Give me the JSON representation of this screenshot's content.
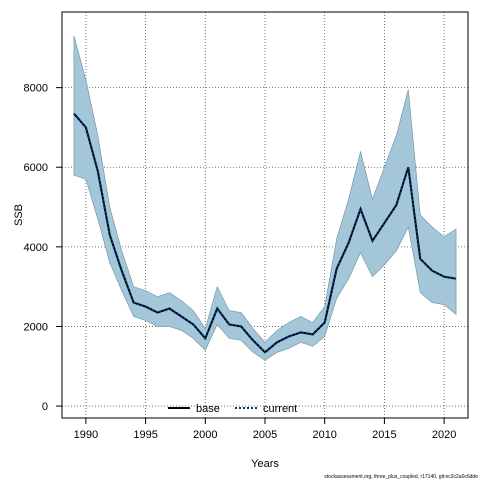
{
  "chart_data": {
    "type": "line",
    "title": "",
    "xlabel": "Years",
    "ylabel": "SSB",
    "xlim": [
      1988,
      2022
    ],
    "ylim": [
      -300,
      9900
    ],
    "x_ticks": [
      1990,
      1995,
      2000,
      2005,
      2010,
      2015,
      2020
    ],
    "y_ticks": [
      0,
      2000,
      4000,
      6000,
      8000
    ],
    "x_tick_labels": [
      "1990",
      "1995",
      "2000",
      "2005",
      "2010",
      "2015",
      "2020"
    ],
    "y_tick_labels": [
      "0",
      "2000",
      "4000",
      "6000",
      "8000"
    ],
    "grid": true,
    "legend_position": "bottom-center",
    "x": [
      1989,
      1990,
      1991,
      1992,
      1993,
      1994,
      1995,
      1996,
      1997,
      1998,
      1999,
      2000,
      2001,
      2002,
      2003,
      2004,
      2005,
      2006,
      2007,
      2008,
      2009,
      2010,
      2011,
      2012,
      2013,
      2014,
      2015,
      2016,
      2017,
      2018,
      2019,
      2020,
      2021
    ],
    "band": {
      "color": "#a3c6d8",
      "upper": [
        9300,
        8200,
        6800,
        5000,
        3900,
        3000,
        2900,
        2750,
        2850,
        2650,
        2400,
        1950,
        3000,
        2400,
        2350,
        1950,
        1600,
        1900,
        2100,
        2250,
        2100,
        2500,
        4200,
        5200,
        6400,
        5200,
        6000,
        6800,
        7950,
        4800,
        4500,
        4250,
        4450
      ],
      "lower": [
        5800,
        5700,
        4700,
        3600,
        2900,
        2250,
        2150,
        2000,
        2000,
        1900,
        1700,
        1400,
        2050,
        1700,
        1650,
        1350,
        1150,
        1350,
        1450,
        1600,
        1500,
        1750,
        2700,
        3200,
        3850,
        3250,
        3550,
        3900,
        4500,
        2850,
        2600,
        2550,
        2300
      ]
    },
    "series": [
      {
        "name": "base",
        "color": "#000000",
        "style": "solid",
        "values": [
          7350,
          7000,
          5900,
          4300,
          3400,
          2600,
          2500,
          2350,
          2450,
          2250,
          2050,
          1700,
          2450,
          2050,
          2000,
          1650,
          1350,
          1600,
          1750,
          1850,
          1800,
          2100,
          3450,
          4100,
          4950,
          4150,
          4600,
          5050,
          6000,
          3700,
          3400,
          3250,
          3200
        ]
      },
      {
        "name": "current",
        "color": "#003a7a",
        "style": "dotted",
        "values": [
          7350,
          7000,
          5900,
          4300,
          3400,
          2600,
          2500,
          2350,
          2450,
          2250,
          2050,
          1700,
          2450,
          2050,
          2000,
          1650,
          1350,
          1600,
          1750,
          1850,
          1800,
          2100,
          3450,
          4100,
          4950,
          4150,
          4600,
          5050,
          6000,
          3700,
          3400,
          3250,
          3200
        ]
      }
    ]
  },
  "footnote": "stockassessment.org, three_plus_coupled, r17140, git:ec2c2a0c6dde"
}
